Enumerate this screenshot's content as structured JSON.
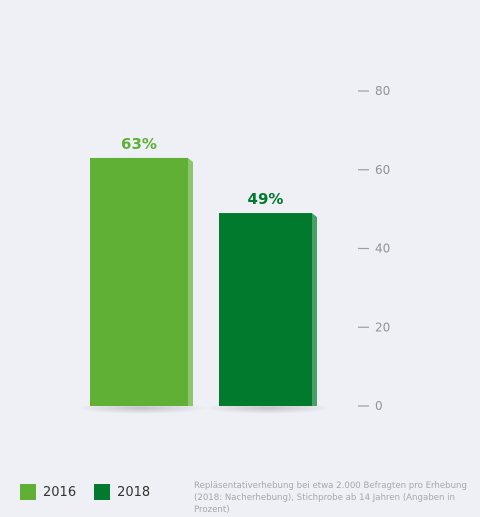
{
  "chart_data": {
    "type": "bar",
    "categories": [
      "2016",
      "2018"
    ],
    "values": [
      63,
      49
    ],
    "data_labels": [
      "63%",
      "49%"
    ],
    "colors": [
      "#5fb035",
      "#017a2e"
    ],
    "label_colors": [
      "#5fb035",
      "#017a2e"
    ],
    "ylim": [
      0,
      80
    ],
    "yticks": [
      0,
      20,
      40,
      60,
      80
    ],
    "grid": false,
    "legend_position": "bottom-left",
    "legend": [
      {
        "label": "2016",
        "color": "#5fb035"
      },
      {
        "label": "2018",
        "color": "#017a2e"
      }
    ]
  },
  "footnote": {
    "line1": "Repläsentativerhebung bei etwa 2.000 Befragten pro Erhebung",
    "line2": "(2018: Nacherhebung), Stichprobe ab 14 Jahren (Angaben in Prozent)"
  }
}
